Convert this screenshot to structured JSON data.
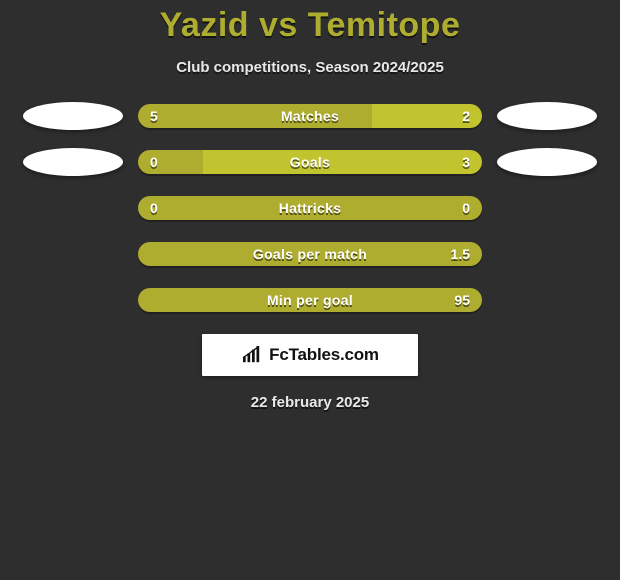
{
  "colors": {
    "background": "#2e2e2e",
    "accent": "#aead2f",
    "accent_bright": "#c2c42f",
    "text_light": "#e8e8e8",
    "value_text": "#ffffff",
    "logo_bg": "#ffffff",
    "logo_text": "#111111",
    "ellipse": "#ffffff"
  },
  "title": "Yazid vs Temitope",
  "subtitle": "Club competitions, Season 2024/2025",
  "rows": [
    {
      "label": "Matches",
      "left_value": "5",
      "right_value": "2",
      "left_pct": 68,
      "right_pct": 32,
      "left_color": "#aead2f",
      "right_color": "#c2c42f",
      "show_left_ellipse": true,
      "show_right_ellipse": true
    },
    {
      "label": "Goals",
      "left_value": "0",
      "right_value": "3",
      "left_pct": 19,
      "right_pct": 81,
      "left_color": "#aead2f",
      "right_color": "#c2c42f",
      "show_left_ellipse": true,
      "show_right_ellipse": true
    },
    {
      "label": "Hattricks",
      "left_value": "0",
      "right_value": "0",
      "left_pct": 100,
      "right_pct": 0,
      "left_color": "#aead2f",
      "right_color": "#c2c42f",
      "show_left_ellipse": false,
      "show_right_ellipse": false
    },
    {
      "label": "Goals per match",
      "left_value": "",
      "right_value": "1.5",
      "left_pct": 0,
      "right_pct": 100,
      "left_color": "#c2c42f",
      "right_color": "#aead2f",
      "show_left_ellipse": false,
      "show_right_ellipse": false
    },
    {
      "label": "Min per goal",
      "left_value": "",
      "right_value": "95",
      "left_pct": 0,
      "right_pct": 100,
      "left_color": "#c2c42f",
      "right_color": "#aead2f",
      "show_left_ellipse": false,
      "show_right_ellipse": false
    }
  ],
  "logo_text": "FcTables.com",
  "date": "22 february 2025"
}
